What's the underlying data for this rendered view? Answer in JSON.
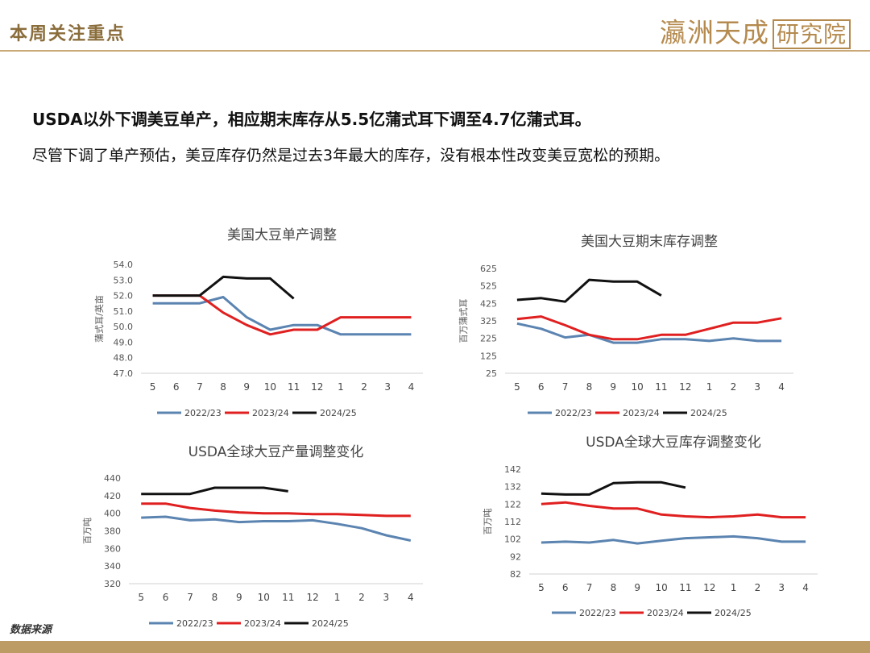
{
  "header": {
    "title": "本周关注重点",
    "logo_main": "瀛洲天成",
    "logo_box": "研究院"
  },
  "headline": "USDA以外下调美豆单产，相应期末库存从5.5亿蒲式耳下调至4.7亿蒲式耳。",
  "body": "尽管下调了单产预估，美豆库存仍然是过去3年最大的库存，没有根本性改变美豆宽松的预期。",
  "footer_note": "数据来源",
  "colors": {
    "2022/23": "#5b84b1",
    "2023/24": "#e02020",
    "2024/25": "#111111"
  },
  "chart_data": [
    {
      "type": "line",
      "title": "美国大豆单产调整",
      "ylabel": "蒲式耳/英亩",
      "categories": [
        "5",
        "6",
        "7",
        "8",
        "9",
        "10",
        "11",
        "12",
        "1",
        "2",
        "3",
        "4"
      ],
      "ylim": [
        47.0,
        54.0
      ],
      "yticks": [
        "54.0",
        "53.0",
        "52.0",
        "51.0",
        "50.0",
        "49.0",
        "48.0",
        "47.0"
      ],
      "series": [
        {
          "name": "2022/23",
          "values": [
            51.5,
            51.5,
            51.5,
            51.9,
            50.6,
            49.8,
            50.1,
            50.1,
            49.5,
            49.5,
            49.5,
            49.5
          ]
        },
        {
          "name": "2023/24",
          "values": [
            52.0,
            52.0,
            52.0,
            50.9,
            50.1,
            49.5,
            49.8,
            49.8,
            50.6,
            50.6,
            50.6,
            50.6
          ]
        },
        {
          "name": "2024/25",
          "values": [
            52.0,
            52.0,
            52.0,
            53.2,
            53.1,
            53.1,
            51.8,
            null,
            null,
            null,
            null,
            null
          ]
        }
      ]
    },
    {
      "type": "line",
      "title": "美国大豆期末库存调整",
      "ylabel": "百万蒲式耳",
      "categories": [
        "5",
        "6",
        "7",
        "8",
        "9",
        "10",
        "11",
        "12",
        "1",
        "2",
        "3",
        "4"
      ],
      "ylim": [
        25,
        625
      ],
      "yticks": [
        "625",
        "525",
        "425",
        "325",
        "225",
        "125",
        "25"
      ],
      "series": [
        {
          "name": "2022/23",
          "values": [
            310,
            280,
            230,
            245,
            200,
            200,
            220,
            220,
            210,
            225,
            210,
            210
          ]
        },
        {
          "name": "2023/24",
          "values": [
            335,
            350,
            300,
            245,
            220,
            220,
            245,
            245,
            280,
            315,
            315,
            340
          ]
        },
        {
          "name": "2024/25",
          "values": [
            445,
            455,
            435,
            560,
            550,
            550,
            470,
            null,
            null,
            null,
            null,
            null
          ]
        }
      ]
    },
    {
      "type": "line",
      "title": "USDA全球大豆产量调整变化",
      "ylabel": "百万吨",
      "categories": [
        "5",
        "6",
        "7",
        "8",
        "9",
        "10",
        "11",
        "12",
        "1",
        "2",
        "3",
        "4"
      ],
      "ylim": [
        320,
        440
      ],
      "yticks": [
        "440",
        "420",
        "400",
        "380",
        "360",
        "340",
        "320"
      ],
      "series": [
        {
          "name": "2022/23",
          "values": [
            395,
            396,
            392,
            393,
            390,
            391,
            391,
            392,
            388,
            383,
            375,
            369
          ]
        },
        {
          "name": "2023/24",
          "values": [
            411,
            411,
            406,
            403,
            401,
            400,
            400,
            399,
            399,
            398,
            397,
            397
          ]
        },
        {
          "name": "2024/25",
          "values": [
            422,
            422,
            422,
            429,
            429,
            429,
            425,
            null,
            null,
            null,
            null,
            null
          ]
        }
      ]
    },
    {
      "type": "line",
      "title": "USDA全球大豆库存调整变化",
      "ylabel": "百万吨",
      "categories": [
        "5",
        "6",
        "7",
        "8",
        "9",
        "10",
        "11",
        "12",
        "1",
        "2",
        "3",
        "4"
      ],
      "ylim": [
        82,
        142
      ],
      "yticks": [
        "142",
        "132",
        "122",
        "112",
        "102",
        "92",
        "82"
      ],
      "series": [
        {
          "name": "2022/23",
          "values": [
            100,
            100.5,
            100,
            101.5,
            99.5,
            101,
            102.5,
            103,
            103.5,
            102.5,
            100.5,
            100.5
          ]
        },
        {
          "name": "2023/24",
          "values": [
            122,
            123,
            121,
            119.5,
            119.5,
            116,
            115,
            114.5,
            115,
            116,
            114.5,
            114.5
          ]
        },
        {
          "name": "2024/25",
          "values": [
            128,
            127.5,
            127.5,
            134,
            134.5,
            134.5,
            131.5,
            null,
            null,
            null,
            null,
            null
          ]
        }
      ]
    }
  ]
}
